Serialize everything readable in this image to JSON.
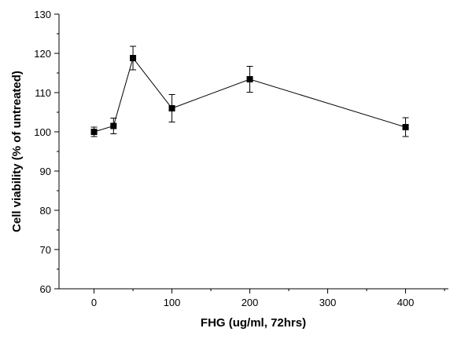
{
  "chart_data": {
    "type": "line",
    "xlabel": "FHG (ug/ml, 72hrs)",
    "ylabel": "Cell viability (% of untreated)",
    "xlim": [
      -45,
      455
    ],
    "ylim": [
      60,
      130
    ],
    "x_ticks": [
      0,
      100,
      200,
      300,
      400
    ],
    "y_ticks": [
      60,
      70,
      80,
      90,
      100,
      110,
      120,
      130
    ],
    "grid": false,
    "marker": "square",
    "line_color": "#000000",
    "series": [
      {
        "x": [
          0,
          25,
          50,
          100,
          200,
          400
        ],
        "y": [
          100.0,
          101.5,
          118.8,
          106.0,
          113.4,
          101.2
        ],
        "error": [
          1.2,
          2.0,
          3.0,
          3.5,
          3.3,
          2.4
        ]
      }
    ]
  }
}
